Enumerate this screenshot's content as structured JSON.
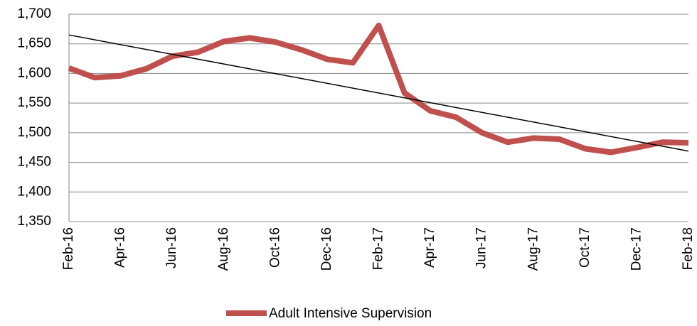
{
  "chart_data": {
    "type": "line",
    "categories": [
      "Feb-16",
      null,
      "Apr-16",
      null,
      "Jun-16",
      null,
      "Aug-16",
      null,
      "Oct-16",
      null,
      "Dec-16",
      null,
      "Feb-17",
      null,
      "Apr-17",
      null,
      "Jun-17",
      null,
      "Aug-17",
      null,
      "Oct-17",
      null,
      "Dec-17",
      null,
      "Feb-18"
    ],
    "series": [
      {
        "name": "Adult Intensive Supervision",
        "color": "#c0504d",
        "values": [
          1609,
          1593,
          1596,
          1608,
          1629,
          1636,
          1654,
          1660,
          1653,
          1640,
          1624,
          1618,
          1681,
          1567,
          1537,
          1526,
          1500,
          1484,
          1491,
          1489,
          1473,
          1467,
          1475,
          1484,
          1483
        ]
      }
    ],
    "trendline": {
      "color": "#000000",
      "values": [
        1665,
        1469
      ]
    },
    "ylim": [
      1350,
      1700
    ],
    "yticks": [
      {
        "value": 1350,
        "label": "1,350"
      },
      {
        "value": 1400,
        "label": "1,400"
      },
      {
        "value": 1450,
        "label": "1,450"
      },
      {
        "value": 1500,
        "label": "1,500"
      },
      {
        "value": 1550,
        "label": "1,550"
      },
      {
        "value": 1600,
        "label": "1,600"
      },
      {
        "value": 1650,
        "label": "1,650"
      },
      {
        "value": 1700,
        "label": "1,700"
      }
    ],
    "grid": true,
    "legend": "bottom"
  }
}
